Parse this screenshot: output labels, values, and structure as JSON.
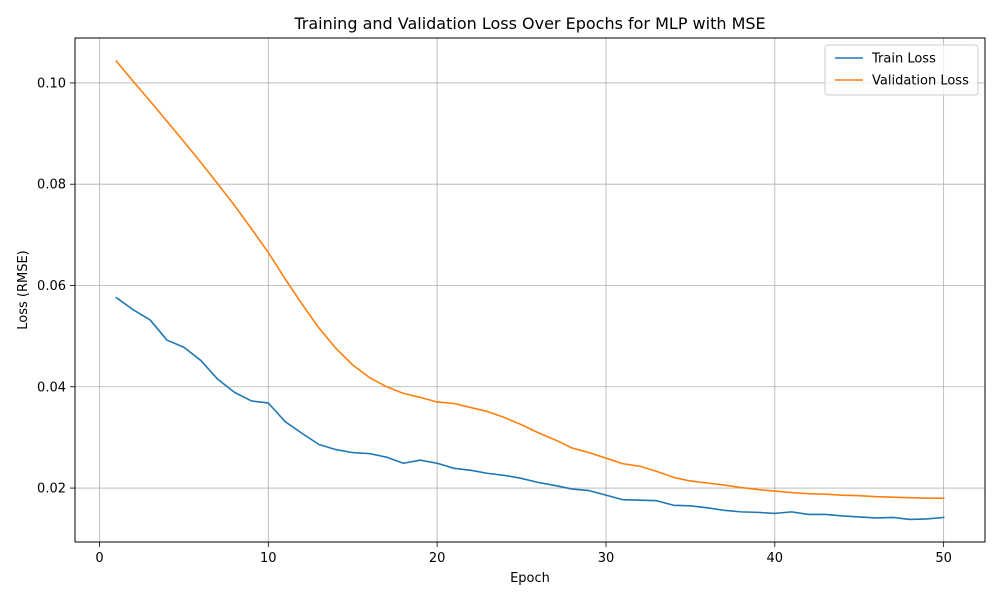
{
  "chart_data": {
    "type": "line",
    "title": "Training and Validation Loss Over Epochs for MLP with MSE",
    "xlabel": "Epoch",
    "ylabel": "Loss (RMSE)",
    "xlim": [
      -1.45,
      52.45
    ],
    "ylim": [
      0.00935,
      0.10887
    ],
    "xticks": [
      0,
      10,
      20,
      30,
      40,
      50
    ],
    "yticks": [
      0.02,
      0.04,
      0.06,
      0.08,
      0.1
    ],
    "ytick_labels": [
      "0.02",
      "0.04",
      "0.06",
      "0.08",
      "0.10"
    ],
    "grid": true,
    "legend_position": "top-right",
    "x": [
      1,
      2,
      3,
      4,
      5,
      6,
      7,
      8,
      9,
      10,
      11,
      12,
      13,
      14,
      15,
      16,
      17,
      18,
      19,
      20,
      21,
      22,
      23,
      24,
      25,
      26,
      27,
      28,
      29,
      30,
      31,
      32,
      33,
      34,
      35,
      36,
      37,
      38,
      39,
      40,
      41,
      42,
      43,
      44,
      45,
      46,
      47,
      48,
      49,
      50
    ],
    "series": [
      {
        "name": "Train Loss",
        "color": "#1f77b4",
        "values": [
          0.0576,
          0.0552,
          0.0532,
          0.0492,
          0.0478,
          0.0452,
          0.0415,
          0.0389,
          0.0372,
          0.0368,
          0.0331,
          0.0308,
          0.0286,
          0.0276,
          0.027,
          0.0268,
          0.0261,
          0.0249,
          0.0255,
          0.0249,
          0.0239,
          0.0235,
          0.0229,
          0.0225,
          0.0219,
          0.0211,
          0.0205,
          0.0198,
          0.0195,
          0.0186,
          0.0177,
          0.0176,
          0.0175,
          0.0166,
          0.0165,
          0.0161,
          0.0156,
          0.0153,
          0.0152,
          0.015,
          0.0153,
          0.0148,
          0.0148,
          0.0145,
          0.0143,
          0.0141,
          0.0142,
          0.0138,
          0.0139,
          0.0142
        ]
      },
      {
        "name": "Validation Loss",
        "color": "#ff7f0e",
        "values": [
          0.1043,
          0.1003,
          0.0964,
          0.0924,
          0.0884,
          0.0843,
          0.0801,
          0.0758,
          0.0712,
          0.0665,
          0.0613,
          0.0563,
          0.0516,
          0.0476,
          0.0443,
          0.0418,
          0.04,
          0.0387,
          0.0379,
          0.037,
          0.0367,
          0.0359,
          0.0351,
          0.0339,
          0.0325,
          0.0309,
          0.0295,
          0.0279,
          0.027,
          0.0259,
          0.0248,
          0.0243,
          0.0233,
          0.0221,
          0.0214,
          0.021,
          0.0206,
          0.0201,
          0.0197,
          0.0194,
          0.0191,
          0.0189,
          0.0188,
          0.0186,
          0.0185,
          0.0183,
          0.0182,
          0.0181,
          0.018,
          0.018
        ]
      }
    ]
  }
}
